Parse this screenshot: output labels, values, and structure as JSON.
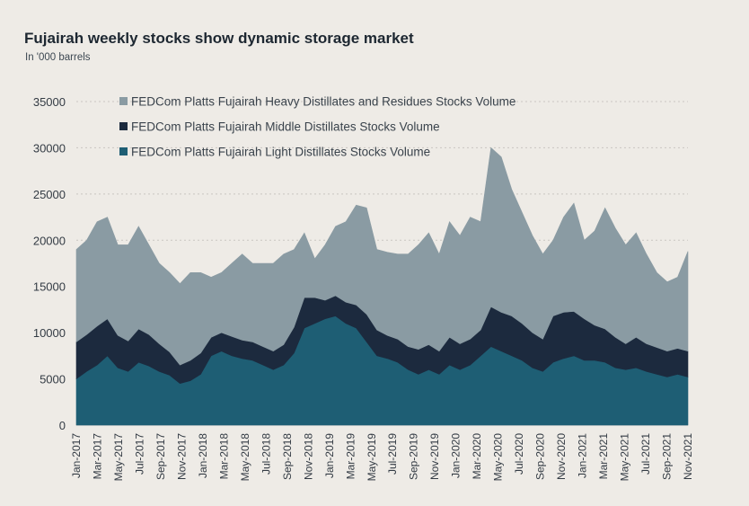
{
  "header": {
    "title": "Fujairah weekly stocks show dynamic storage market",
    "subtitle": "In '000 barrels"
  },
  "chart_data": {
    "type": "area",
    "stacked": true,
    "title": "Fujairah weekly stocks show dynamic storage market",
    "subtitle": "In '000 barrels",
    "xlabel": "",
    "ylabel": "",
    "ylim": [
      0,
      35000
    ],
    "yticks": [
      0,
      5000,
      10000,
      15000,
      20000,
      25000,
      30000,
      35000
    ],
    "grid": "horizontal",
    "legend_position": "top-left",
    "x_tick_labels": [
      "Jan-2017",
      "Mar-2017",
      "May-2017",
      "Jul-2017",
      "Sep-2017",
      "Nov-2017",
      "Jan-2018",
      "Mar-2018",
      "May-2018",
      "Jul-2018",
      "Sep-2018",
      "Nov-2018",
      "Jan-2019",
      "Mar-2019",
      "May-2019",
      "Jul-2019",
      "Sep-2019",
      "Nov-2019",
      "Jan-2020",
      "Mar-2020",
      "May-2020",
      "Jul-2020",
      "Sep-2020",
      "Nov-2020",
      "Jan-2021",
      "Mar-2021",
      "May-2021",
      "Jul-2021",
      "Sep-2021",
      "Nov-2021"
    ],
    "x": [
      "2017-01",
      "2017-02",
      "2017-03",
      "2017-04",
      "2017-05",
      "2017-06",
      "2017-07",
      "2017-08",
      "2017-09",
      "2017-10",
      "2017-11",
      "2017-12",
      "2018-01",
      "2018-02",
      "2018-03",
      "2018-04",
      "2018-05",
      "2018-06",
      "2018-07",
      "2018-08",
      "2018-09",
      "2018-10",
      "2018-11",
      "2018-12",
      "2019-01",
      "2019-02",
      "2019-03",
      "2019-04",
      "2019-05",
      "2019-06",
      "2019-07",
      "2019-08",
      "2019-09",
      "2019-10",
      "2019-11",
      "2019-12",
      "2020-01",
      "2020-02",
      "2020-03",
      "2020-04",
      "2020-05",
      "2020-06",
      "2020-07",
      "2020-08",
      "2020-09",
      "2020-10",
      "2020-11",
      "2020-12",
      "2021-01",
      "2021-02",
      "2021-03",
      "2021-04",
      "2021-05",
      "2021-06",
      "2021-07",
      "2021-08",
      "2021-09",
      "2021-10",
      "2021-11",
      "2021-12"
    ],
    "series": [
      {
        "name": "FEDCom Platts Fujairah Light Distillates Stocks Volume",
        "color": "#1e5e74",
        "values": [
          5000,
          5800,
          6500,
          7500,
          6200,
          5800,
          6800,
          6400,
          5800,
          5400,
          4500,
          4800,
          5500,
          7500,
          8000,
          7500,
          7200,
          7000,
          6500,
          6000,
          6500,
          7800,
          10500,
          11000,
          11500,
          11800,
          11000,
          10500,
          9000,
          7500,
          7200,
          6800,
          6000,
          5500,
          6000,
          5500,
          6500,
          6000,
          6500,
          7500,
          8500,
          8000,
          7500,
          7000,
          6200,
          5800,
          6800,
          7200,
          7500,
          7000,
          7000,
          6800,
          6200,
          6000,
          6200,
          5800,
          5500,
          5200,
          5500,
          5200
        ]
      },
      {
        "name": "FEDCom Platts Fujairah Middle Distillates Stocks Volume",
        "color": "#1c2a3e",
        "values": [
          4000,
          4000,
          4200,
          4000,
          3500,
          3300,
          3600,
          3400,
          3000,
          2500,
          2000,
          2200,
          2300,
          2000,
          2000,
          2100,
          2000,
          2000,
          2000,
          2000,
          2200,
          2800,
          3300,
          2800,
          2000,
          2200,
          2300,
          2500,
          3000,
          2800,
          2500,
          2500,
          2500,
          2700,
          2700,
          2500,
          3000,
          2800,
          2800,
          2800,
          4300,
          4200,
          4300,
          4000,
          3800,
          3500,
          5000,
          5000,
          4800,
          4500,
          3800,
          3600,
          3300,
          2800,
          3300,
          3000,
          2900,
          2800,
          2800,
          2800
        ]
      },
      {
        "name": "FEDCom Platts Fujairah Heavy Distillates and Residues Stocks Volume",
        "color": "#8a9ba3",
        "values": [
          10000,
          10200,
          11300,
          11000,
          9800,
          10400,
          11100,
          9700,
          8700,
          8600,
          8800,
          9500,
          8700,
          6500,
          6500,
          7900,
          9300,
          8500,
          9000,
          9500,
          9800,
          8400,
          7000,
          4200,
          6000,
          7500,
          8700,
          10800,
          11500,
          8700,
          9000,
          9200,
          10000,
          11300,
          12100,
          10500,
          12500,
          11700,
          13200,
          11700,
          17200,
          16800,
          13700,
          12000,
          10500,
          9200,
          8200,
          10300,
          11700,
          8500,
          10200,
          13100,
          11800,
          10700,
          11300,
          9700,
          8100,
          7500,
          7700,
          10800
        ]
      }
    ]
  }
}
